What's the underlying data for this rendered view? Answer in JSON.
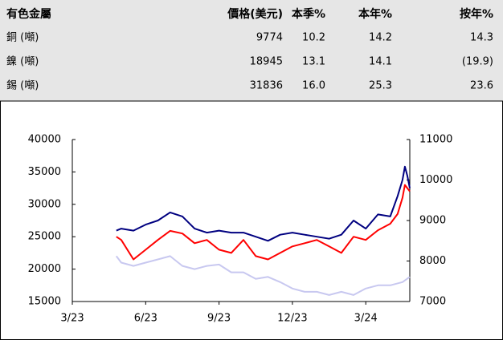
{
  "table": {
    "header": [
      "有色金屬",
      "價格(美元)",
      "本季%",
      "本年%",
      "按年%"
    ],
    "rows": [
      [
        "銅 (噸)",
        "9774",
        "10.2",
        "14.2",
        "14.3"
      ],
      [
        "鎳 (噸)",
        "18945",
        "13.1",
        "14.1",
        "(19.9)"
      ],
      [
        "錫 (噸)",
        "31836",
        "16.0",
        "25.3",
        "23.6"
      ]
    ]
  },
  "chart_data": {
    "type": "line",
    "xlim": [
      0,
      13.8
    ],
    "xticks": [
      {
        "value": 0,
        "label": "3/23"
      },
      {
        "value": 3,
        "label": "6/23"
      },
      {
        "value": 6,
        "label": "9/23"
      },
      {
        "value": 9,
        "label": "12/23"
      },
      {
        "value": 12,
        "label": "3/24"
      }
    ],
    "ylim": [
      15000,
      40000
    ],
    "yticks": [
      15000,
      20000,
      25000,
      30000,
      35000,
      40000
    ],
    "y2lim": [
      7000,
      11000
    ],
    "y2ticks": [
      7000,
      8000,
      9000,
      10000,
      11000
    ],
    "series": [
      {
        "color": "#000080",
        "axis": "y2",
        "x": [
          1.8,
          2.0,
          2.5,
          3.0,
          3.5,
          4.0,
          4.5,
          5.0,
          5.5,
          6.0,
          6.5,
          7.0,
          7.5,
          8.0,
          8.5,
          9.0,
          9.5,
          10.0,
          10.5,
          11.0,
          11.5,
          12.0,
          12.5,
          13.0,
          13.3,
          13.5,
          13.6,
          13.7,
          13.8
        ],
        "values": [
          8750,
          8800,
          8750,
          8900,
          9000,
          9200,
          9100,
          8800,
          8700,
          8750,
          8700,
          8700,
          8600,
          8500,
          8650,
          8700,
          8650,
          8600,
          8550,
          8650,
          9000,
          8800,
          9150,
          9100,
          9600,
          10000,
          10330,
          10100,
          9800
        ]
      },
      {
        "color": "#ff0000",
        "x": [
          1.8,
          2.0,
          2.5,
          3.0,
          3.5,
          4.0,
          4.5,
          5.0,
          5.5,
          6.0,
          6.5,
          7.0,
          7.5,
          8.0,
          8.5,
          9.0,
          9.5,
          10.0,
          10.5,
          11.0,
          11.5,
          12.0,
          12.5,
          13.0,
          13.3,
          13.5,
          13.6,
          13.8
        ],
        "values": [
          25000,
          24500,
          21500,
          23000,
          24500,
          25900,
          25500,
          24000,
          24500,
          23000,
          22500,
          24500,
          22000,
          21500,
          22500,
          23500,
          24000,
          24500,
          23500,
          22500,
          25000,
          24500,
          26000,
          27000,
          28500,
          31000,
          33000,
          32000
        ]
      },
      {
        "color": "#c8c8f0",
        "x": [
          1.8,
          2.0,
          2.5,
          3.0,
          3.5,
          4.0,
          4.5,
          5.0,
          5.5,
          6.0,
          6.5,
          7.0,
          7.5,
          8.0,
          8.5,
          9.0,
          9.5,
          10.0,
          10.5,
          11.0,
          11.5,
          12.0,
          12.5,
          13.0,
          13.5,
          13.8
        ],
        "values": [
          22000,
          21000,
          20500,
          21000,
          21500,
          22000,
          20500,
          20000,
          20500,
          20700,
          19500,
          19500,
          18500,
          18800,
          18000,
          17000,
          16500,
          16500,
          16000,
          16500,
          16000,
          17000,
          17500,
          17500,
          18000,
          18800
        ]
      }
    ]
  }
}
